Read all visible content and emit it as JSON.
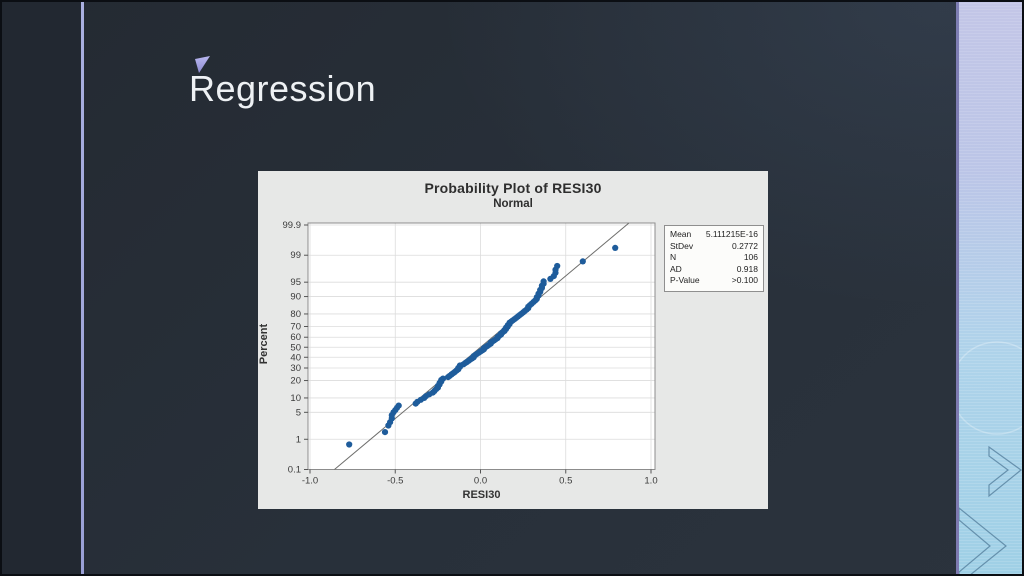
{
  "slide": {
    "title": "Regression",
    "accent_color_top": "#b9b7f0",
    "accent_color_bottom": "#8d8bd0",
    "background": "#28303a",
    "left_strip_color": "#222831",
    "divider_color": "#a3a8da",
    "right_band": {
      "top_color": "#cacae9",
      "bottom_color": "#9fd0e6",
      "border_color": "#7d7ab0",
      "chevron_color": "#55809d"
    }
  },
  "chart_data": {
    "type": "scatter",
    "title": "Probability Plot of RESI30",
    "subtitle": "Normal",
    "xlabel": "RESI30",
    "ylabel": "Percent",
    "y_scale": "normal-probability-probit",
    "xlim": [
      -1.012,
      1.023
    ],
    "ylim_percent": [
      0.1,
      99.9
    ],
    "grid": true,
    "x_ticks": [
      "-1.0",
      "-0.5",
      "0.0",
      "0.5",
      "1.0"
    ],
    "y_ticks": [
      "99.9",
      "99",
      "95",
      "90",
      "80",
      "70",
      "60",
      "50",
      "40",
      "30",
      "20",
      "10",
      "5",
      "1",
      "0.1"
    ],
    "fit_line": {
      "mean": 0,
      "stdev": 0.2772
    },
    "point_color": "#1e5c9b",
    "grid_color": "#dcdcdc",
    "frame_color": "#8c8c8c",
    "fit_line_color": "#6e6e6c",
    "points": [
      [
        -0.77,
        0.7
      ],
      [
        -0.56,
        1.6
      ],
      [
        -0.54,
        2.4
      ],
      [
        -0.53,
        2.9
      ],
      [
        -0.52,
        3.6
      ],
      [
        -0.52,
        4.3
      ],
      [
        -0.51,
        5.0
      ],
      [
        -0.5,
        5.6
      ],
      [
        -0.49,
        6.3
      ],
      [
        -0.48,
        7.0
      ],
      [
        -0.38,
        7.7
      ],
      [
        -0.37,
        8.4
      ],
      [
        -0.35,
        9.2
      ],
      [
        -0.33,
        10.0
      ],
      [
        -0.32,
        10.8
      ],
      [
        -0.3,
        11.7
      ],
      [
        -0.28,
        12.6
      ],
      [
        -0.27,
        13.5
      ],
      [
        -0.26,
        14.5
      ],
      [
        -0.25,
        15.4
      ],
      [
        -0.25,
        16.4
      ],
      [
        -0.24,
        17.4
      ],
      [
        -0.24,
        18.4
      ],
      [
        -0.23,
        19.4
      ],
      [
        -0.23,
        20.4
      ],
      [
        -0.22,
        21.4
      ],
      [
        -0.19,
        22.5
      ],
      [
        -0.18,
        23.5
      ],
      [
        -0.17,
        24.6
      ],
      [
        -0.16,
        25.6
      ],
      [
        -0.15,
        26.7
      ],
      [
        -0.14,
        27.8
      ],
      [
        -0.13,
        28.9
      ],
      [
        -0.13,
        30.0
      ],
      [
        -0.12,
        31.1
      ],
      [
        -0.12,
        32.2
      ],
      [
        -0.1,
        33.3
      ],
      [
        -0.09,
        34.4
      ],
      [
        -0.08,
        35.5
      ],
      [
        -0.07,
        36.6
      ],
      [
        -0.06,
        37.8
      ],
      [
        -0.05,
        38.9
      ],
      [
        -0.04,
        40.0
      ],
      [
        -0.04,
        41.1
      ],
      [
        -0.03,
        42.3
      ],
      [
        -0.02,
        43.4
      ],
      [
        -0.01,
        44.5
      ],
      [
        0.0,
        45.7
      ],
      [
        0.01,
        46.8
      ],
      [
        0.02,
        47.9
      ],
      [
        0.02,
        49.1
      ],
      [
        0.03,
        50.2
      ],
      [
        0.04,
        51.3
      ],
      [
        0.05,
        52.5
      ],
      [
        0.06,
        53.6
      ],
      [
        0.06,
        54.7
      ],
      [
        0.07,
        55.8
      ],
      [
        0.08,
        56.9
      ],
      [
        0.09,
        58.1
      ],
      [
        0.1,
        59.2
      ],
      [
        0.1,
        60.3
      ],
      [
        0.11,
        61.4
      ],
      [
        0.12,
        62.5
      ],
      [
        0.12,
        63.6
      ],
      [
        0.13,
        64.7
      ],
      [
        0.14,
        65.8
      ],
      [
        0.14,
        66.8
      ],
      [
        0.15,
        67.9
      ],
      [
        0.15,
        69.0
      ],
      [
        0.16,
        70.0
      ],
      [
        0.16,
        71.1
      ],
      [
        0.17,
        72.1
      ],
      [
        0.17,
        73.2
      ],
      [
        0.18,
        74.2
      ],
      [
        0.19,
        75.2
      ],
      [
        0.2,
        76.2
      ],
      [
        0.21,
        77.2
      ],
      [
        0.22,
        78.2
      ],
      [
        0.23,
        79.2
      ],
      [
        0.24,
        80.1
      ],
      [
        0.25,
        81.1
      ],
      [
        0.26,
        82.0
      ],
      [
        0.27,
        82.9
      ],
      [
        0.28,
        83.8
      ],
      [
        0.28,
        84.7
      ],
      [
        0.29,
        85.6
      ],
      [
        0.3,
        86.4
      ],
      [
        0.31,
        87.3
      ],
      [
        0.32,
        88.1
      ],
      [
        0.33,
        88.9
      ],
      [
        0.33,
        89.7
      ],
      [
        0.34,
        90.4
      ],
      [
        0.34,
        91.2
      ],
      [
        0.35,
        91.9
      ],
      [
        0.35,
        92.6
      ],
      [
        0.36,
        93.3
      ],
      [
        0.36,
        94.0
      ],
      [
        0.37,
        94.6
      ],
      [
        0.37,
        95.2
      ],
      [
        0.41,
        95.8
      ],
      [
        0.43,
        96.4
      ],
      [
        0.44,
        97.0
      ],
      [
        0.44,
        97.5
      ],
      [
        0.45,
        98.0
      ],
      [
        0.6,
        98.5
      ],
      [
        0.79,
        99.4
      ]
    ],
    "stats": [
      {
        "label": "Mean",
        "value": "5.111215E-16"
      },
      {
        "label": "StDev",
        "value": "0.2772"
      },
      {
        "label": "N",
        "value": "106"
      },
      {
        "label": "AD",
        "value": "0.918"
      },
      {
        "label": "P-Value",
        "value": ">0.100"
      }
    ]
  }
}
